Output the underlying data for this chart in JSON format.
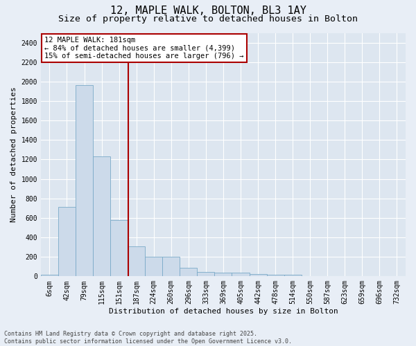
{
  "title1": "12, MAPLE WALK, BOLTON, BL3 1AY",
  "title2": "Size of property relative to detached houses in Bolton",
  "xlabel": "Distribution of detached houses by size in Bolton",
  "ylabel": "Number of detached properties",
  "bar_color": "#ccdaea",
  "bar_edge_color": "#7aaac8",
  "background_color": "#dde6f0",
  "fig_background": "#e8eef6",
  "grid_color": "#ffffff",
  "categories": [
    "6sqm",
    "42sqm",
    "79sqm",
    "115sqm",
    "151sqm",
    "187sqm",
    "224sqm",
    "260sqm",
    "296sqm",
    "333sqm",
    "369sqm",
    "405sqm",
    "442sqm",
    "478sqm",
    "514sqm",
    "550sqm",
    "587sqm",
    "623sqm",
    "659sqm",
    "696sqm",
    "732sqm"
  ],
  "values": [
    15,
    710,
    1960,
    1235,
    580,
    305,
    200,
    200,
    85,
    47,
    35,
    35,
    25,
    20,
    20,
    5,
    3,
    2,
    1,
    0,
    0
  ],
  "vline_color": "#aa0000",
  "vline_x": 4.55,
  "annotation_text": "12 MAPLE WALK: 181sqm\n← 84% of detached houses are smaller (4,399)\n15% of semi-detached houses are larger (796) →",
  "annotation_box_color": "#ffffff",
  "annotation_edge_color": "#aa0000",
  "ylim": [
    0,
    2500
  ],
  "yticks": [
    0,
    200,
    400,
    600,
    800,
    1000,
    1200,
    1400,
    1600,
    1800,
    2000,
    2200,
    2400
  ],
  "footer": "Contains HM Land Registry data © Crown copyright and database right 2025.\nContains public sector information licensed under the Open Government Licence v3.0.",
  "title_fontsize": 11,
  "subtitle_fontsize": 9.5,
  "axis_label_fontsize": 8,
  "tick_fontsize": 7,
  "annotation_fontsize": 7.5,
  "footer_fontsize": 6
}
